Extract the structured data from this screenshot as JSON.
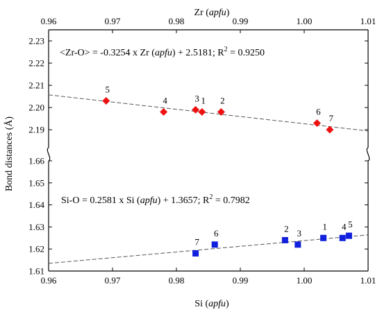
{
  "chart_data": {
    "type": "scatter",
    "ylabel": "Bond distances (Å)",
    "top_axis": {
      "label": "Zr",
      "label_unit": "apfu",
      "xlim": [
        0.96,
        1.01
      ],
      "ticks": [
        0.96,
        0.97,
        0.98,
        0.99,
        1.0,
        1.01
      ],
      "tick_labels": [
        "0.96",
        "0.97",
        "0.98",
        "0.99",
        "1.00",
        "1.01"
      ]
    },
    "bottom_axis": {
      "label": "Si",
      "label_unit": "apfu",
      "xlim": [
        0.96,
        1.01
      ],
      "ticks": [
        0.96,
        0.97,
        0.98,
        0.99,
        1.0,
        1.01
      ],
      "tick_labels": [
        "0.96",
        "0.97",
        "0.98",
        "0.99",
        "1.00",
        "1.01"
      ]
    },
    "upper_panel": {
      "ylim": [
        2.186,
        2.235
      ],
      "ticks": [
        2.19,
        2.2,
        2.21,
        2.22,
        2.23
      ],
      "tick_labels": [
        "2.19",
        "2.20",
        "2.21",
        "2.22",
        "2.23"
      ]
    },
    "lower_panel": {
      "ylim": [
        1.61,
        1.66
      ],
      "ticks": [
        1.61,
        1.62,
        1.63,
        1.64,
        1.65,
        1.66
      ],
      "tick_labels": [
        "1.61",
        "1.62",
        "1.63",
        "1.64",
        "1.65",
        "1.66"
      ]
    },
    "series": [
      {
        "panel": "upper",
        "axis": "top",
        "marker": "diamond",
        "color": "#ee1111",
        "equation": {
          "lhs": "<Zr-O> = -0.3254 x Zr (",
          "unit": "apfu",
          "rhs": ") + 2.5181; R",
          "sup": "2",
          "tail": " = 0.9250"
        },
        "fit": {
          "slope": -0.3254,
          "intercept": 2.5181
        },
        "points": [
          {
            "label": "5",
            "x": 0.969,
            "y": 2.203
          },
          {
            "label": "4",
            "x": 0.978,
            "y": 2.198
          },
          {
            "label": "3",
            "x": 0.983,
            "y": 2.199
          },
          {
            "label": "1",
            "x": 0.984,
            "y": 2.198
          },
          {
            "label": "2",
            "x": 0.987,
            "y": 2.198
          },
          {
            "label": "6",
            "x": 1.002,
            "y": 2.193
          },
          {
            "label": "7",
            "x": 1.004,
            "y": 2.19
          }
        ]
      },
      {
        "panel": "lower",
        "axis": "bottom",
        "marker": "square",
        "color": "#1020dd",
        "equation": {
          "lhs": "Si-O = 0.2581 x Si (",
          "unit": "apfu",
          "rhs": ") + 1.3657; R",
          "sup": "2",
          "tail": " = 0.7982"
        },
        "fit": {
          "slope": 0.2581,
          "intercept": 1.3657
        },
        "points": [
          {
            "label": "7",
            "x": 0.983,
            "y": 1.618
          },
          {
            "label": "6",
            "x": 0.986,
            "y": 1.622
          },
          {
            "label": "2",
            "x": 0.997,
            "y": 1.624
          },
          {
            "label": "3",
            "x": 0.999,
            "y": 1.622
          },
          {
            "label": "1",
            "x": 1.003,
            "y": 1.625
          },
          {
            "label": "4",
            "x": 1.006,
            "y": 1.625
          },
          {
            "label": "5",
            "x": 1.007,
            "y": 1.626
          }
        ]
      }
    ]
  }
}
